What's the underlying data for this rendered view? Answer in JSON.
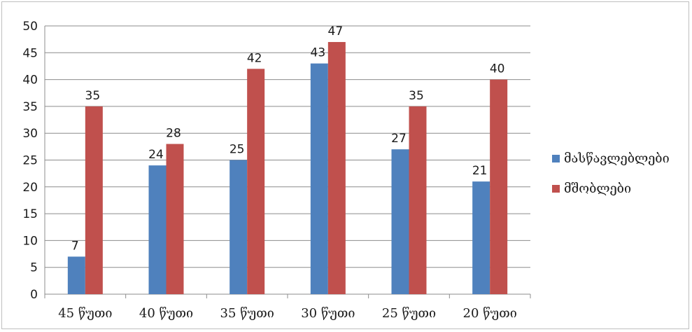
{
  "chart_data": {
    "type": "bar",
    "title": "",
    "xlabel": "",
    "ylabel": "",
    "categories": [
      "45 წუთი",
      "40 წუთი",
      "35 წუთი",
      "30 წუთი",
      "25 წუთი",
      "20 წუთი"
    ],
    "series": [
      {
        "name": "მასწავლებლები",
        "values": [
          7,
          24,
          25,
          43,
          27,
          21
        ],
        "color": "#4f81bd"
      },
      {
        "name": "მშობლები",
        "values": [
          35,
          28,
          42,
          47,
          35,
          40
        ],
        "color": "#c0504d"
      }
    ],
    "ylim": [
      0,
      50
    ],
    "yticks": [
      0,
      5,
      10,
      15,
      20,
      25,
      30,
      35,
      40,
      45,
      50
    ],
    "grid": true,
    "legend_position": "right",
    "data_labels": true
  }
}
